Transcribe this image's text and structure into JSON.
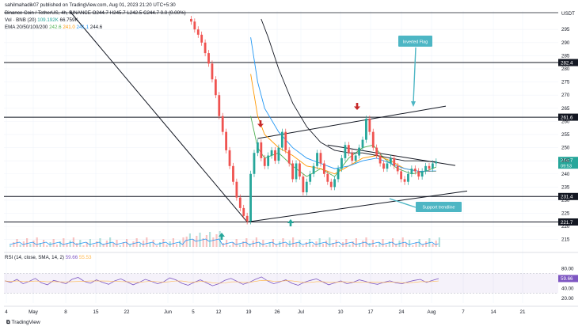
{
  "header": {
    "published": "sahilmahadik07 published on TradingView.com, Aug 01, 2023 21:20 UTC+5:30",
    "symbol": "Binance Coin / TetherUS, 4h, BINANCE",
    "ohlc": "O244.7 H245.7 L242.5 C244.7 0.0 (0.00%)",
    "vol_label": "Vol · BNB (20)",
    "vol_v1": "109.192K",
    "vol_v2": "66.759K",
    "ema_label": "EMA 20/50/100/200",
    "ema_v1": "242.6",
    "ema_v2": "241.0",
    "ema_v3": "241.1",
    "ema_v4": "244.6",
    "currency": "USDT"
  },
  "rsi_header": {
    "label": "RSI (14, close, SMA, 14, 2)",
    "v1": "59.66",
    "v2": "55.53"
  },
  "footer": {
    "brand": "TradingView"
  },
  "colors": {
    "candle": "#ef5350",
    "ema20": "#4caf50",
    "ema50": "#ff9800",
    "ema100": "#2196f3",
    "ema200": "#131722",
    "rsi": "#7e57c2",
    "annotation": "#4db6c4",
    "arrow_down": "#c62828",
    "arrow_up": "#26a69a",
    "price_tag": "#26a69a"
  },
  "chart_data": {
    "type": "line",
    "y_axis": {
      "ticks": [
        215,
        220,
        225,
        230,
        235,
        240,
        245,
        250,
        255,
        260,
        265,
        270,
        275,
        280,
        285,
        290,
        295
      ],
      "range": [
        211,
        302
      ]
    },
    "x_axis": {
      "ticks": [
        "4",
        "May",
        "8",
        "15",
        "22",
        "Jun",
        "5",
        "12",
        "19",
        "26",
        "Jul",
        "10",
        "17",
        "24",
        "Aug",
        "7",
        "14",
        "21"
      ]
    },
    "levels": [
      {
        "name": "r1",
        "price": 282.4,
        "label": "282.4"
      },
      {
        "name": "r2",
        "price": 261.6,
        "label": "261.6"
      },
      {
        "name": "s1",
        "price": 231.4,
        "label": "231.4"
      },
      {
        "name": "s2",
        "price": 221.7,
        "label": "221.7"
      }
    ],
    "current_price": {
      "price": 244.7,
      "label": "244.7",
      "countdown": "09:53"
    },
    "annotations": [
      {
        "text": "Inverted Flag"
      },
      {
        "text": "Support trendline"
      }
    ],
    "price_series": [
      [
        0,
        299
      ],
      [
        1,
        298
      ],
      [
        2,
        295
      ],
      [
        3,
        293
      ],
      [
        4,
        290
      ],
      [
        5,
        286
      ],
      [
        6,
        282
      ],
      [
        7,
        276
      ],
      [
        8,
        270
      ],
      [
        9,
        262
      ],
      [
        10,
        256
      ],
      [
        11,
        249
      ],
      [
        12,
        243
      ],
      [
        13,
        237
      ],
      [
        14,
        231
      ],
      [
        15,
        227
      ],
      [
        16,
        224
      ],
      [
        17,
        222
      ],
      [
        18,
        240
      ],
      [
        19,
        248
      ],
      [
        20,
        252
      ],
      [
        21,
        246
      ],
      [
        22,
        243
      ],
      [
        23,
        247
      ],
      [
        24,
        249
      ],
      [
        25,
        245
      ],
      [
        26,
        250
      ],
      [
        27,
        256
      ],
      [
        28,
        249
      ],
      [
        29,
        244
      ],
      [
        30,
        238
      ],
      [
        31,
        244
      ],
      [
        32,
        239
      ],
      [
        33,
        233
      ],
      [
        34,
        237
      ],
      [
        35,
        240
      ],
      [
        36,
        243
      ],
      [
        37,
        248
      ],
      [
        38,
        244
      ],
      [
        39,
        240
      ],
      [
        40,
        237
      ],
      [
        41,
        235
      ],
      [
        42,
        238
      ],
      [
        43,
        242
      ],
      [
        44,
        246
      ],
      [
        45,
        251
      ],
      [
        46,
        248
      ],
      [
        47,
        245
      ],
      [
        48,
        247
      ],
      [
        49,
        250
      ],
      [
        50,
        253
      ],
      [
        51,
        261
      ],
      [
        52,
        256
      ],
      [
        53,
        250
      ],
      [
        54,
        247
      ],
      [
        55,
        244
      ],
      [
        56,
        242
      ],
      [
        57,
        244
      ],
      [
        58,
        246
      ],
      [
        59,
        243
      ],
      [
        60,
        241
      ],
      [
        61,
        238
      ],
      [
        62,
        237
      ],
      [
        63,
        240
      ],
      [
        64,
        242
      ],
      [
        65,
        241
      ],
      [
        66,
        239
      ],
      [
        67,
        241
      ],
      [
        68,
        243
      ],
      [
        69,
        242
      ],
      [
        70,
        244
      ],
      [
        71,
        244.7
      ]
    ],
    "ema_series": [
      {
        "name": "20",
        "values": [
          [
            18,
            262
          ],
          [
            20,
            250
          ],
          [
            22,
            246
          ],
          [
            26,
            248
          ],
          [
            30,
            243
          ],
          [
            34,
            239
          ],
          [
            38,
            242
          ],
          [
            42,
            239
          ],
          [
            46,
            246
          ],
          [
            50,
            250
          ],
          [
            53,
            251
          ],
          [
            56,
            246
          ],
          [
            60,
            242
          ],
          [
            64,
            240
          ],
          [
            68,
            241
          ],
          [
            71,
            242.6
          ]
        ]
      },
      {
        "name": "50",
        "values": [
          [
            18,
            278
          ],
          [
            20,
            262
          ],
          [
            22,
            255
          ],
          [
            26,
            250
          ],
          [
            30,
            247
          ],
          [
            34,
            243
          ],
          [
            38,
            242
          ],
          [
            42,
            240
          ],
          [
            46,
            243
          ],
          [
            50,
            246
          ],
          [
            54,
            247
          ],
          [
            58,
            245
          ],
          [
            62,
            242
          ],
          [
            66,
            241
          ],
          [
            71,
            241.0
          ]
        ]
      },
      {
        "name": "100",
        "values": [
          [
            18,
            292
          ],
          [
            20,
            275
          ],
          [
            22,
            265
          ],
          [
            26,
            256
          ],
          [
            30,
            250
          ],
          [
            34,
            246
          ],
          [
            38,
            244
          ],
          [
            42,
            242
          ],
          [
            46,
            243
          ],
          [
            50,
            245
          ],
          [
            54,
            246
          ],
          [
            58,
            244
          ],
          [
            62,
            242
          ],
          [
            66,
            241
          ],
          [
            71,
            241.1
          ]
        ]
      },
      {
        "name": "200",
        "values": [
          [
            21,
            299
          ],
          [
            23,
            292
          ],
          [
            26,
            280
          ],
          [
            30,
            267
          ],
          [
            34,
            258
          ],
          [
            38,
            252
          ],
          [
            42,
            249
          ],
          [
            46,
            248
          ],
          [
            50,
            248
          ],
          [
            54,
            247
          ],
          [
            58,
            246
          ],
          [
            62,
            245
          ],
          [
            66,
            245
          ],
          [
            71,
            244.6
          ]
        ]
      }
    ],
    "rsi": {
      "ticks": [
        20,
        40,
        60,
        80
      ],
      "band": [
        30,
        70
      ],
      "values": [
        55,
        52,
        58,
        49,
        54,
        60,
        51,
        47,
        56,
        53,
        49,
        58,
        62,
        54,
        50,
        57,
        52,
        48,
        55,
        59,
        53,
        47,
        52,
        58,
        54,
        49,
        53,
        61,
        57,
        50,
        46,
        52,
        57,
        51,
        45,
        49,
        56,
        60,
        54,
        48,
        52,
        58,
        63,
        55,
        49,
        53,
        57,
        50,
        46,
        52,
        56,
        59,
        53,
        47,
        51,
        55,
        49,
        52,
        57,
        54,
        50,
        48,
        52,
        55,
        51,
        49,
        53,
        56,
        58,
        52,
        56,
        59.66
      ]
    }
  }
}
